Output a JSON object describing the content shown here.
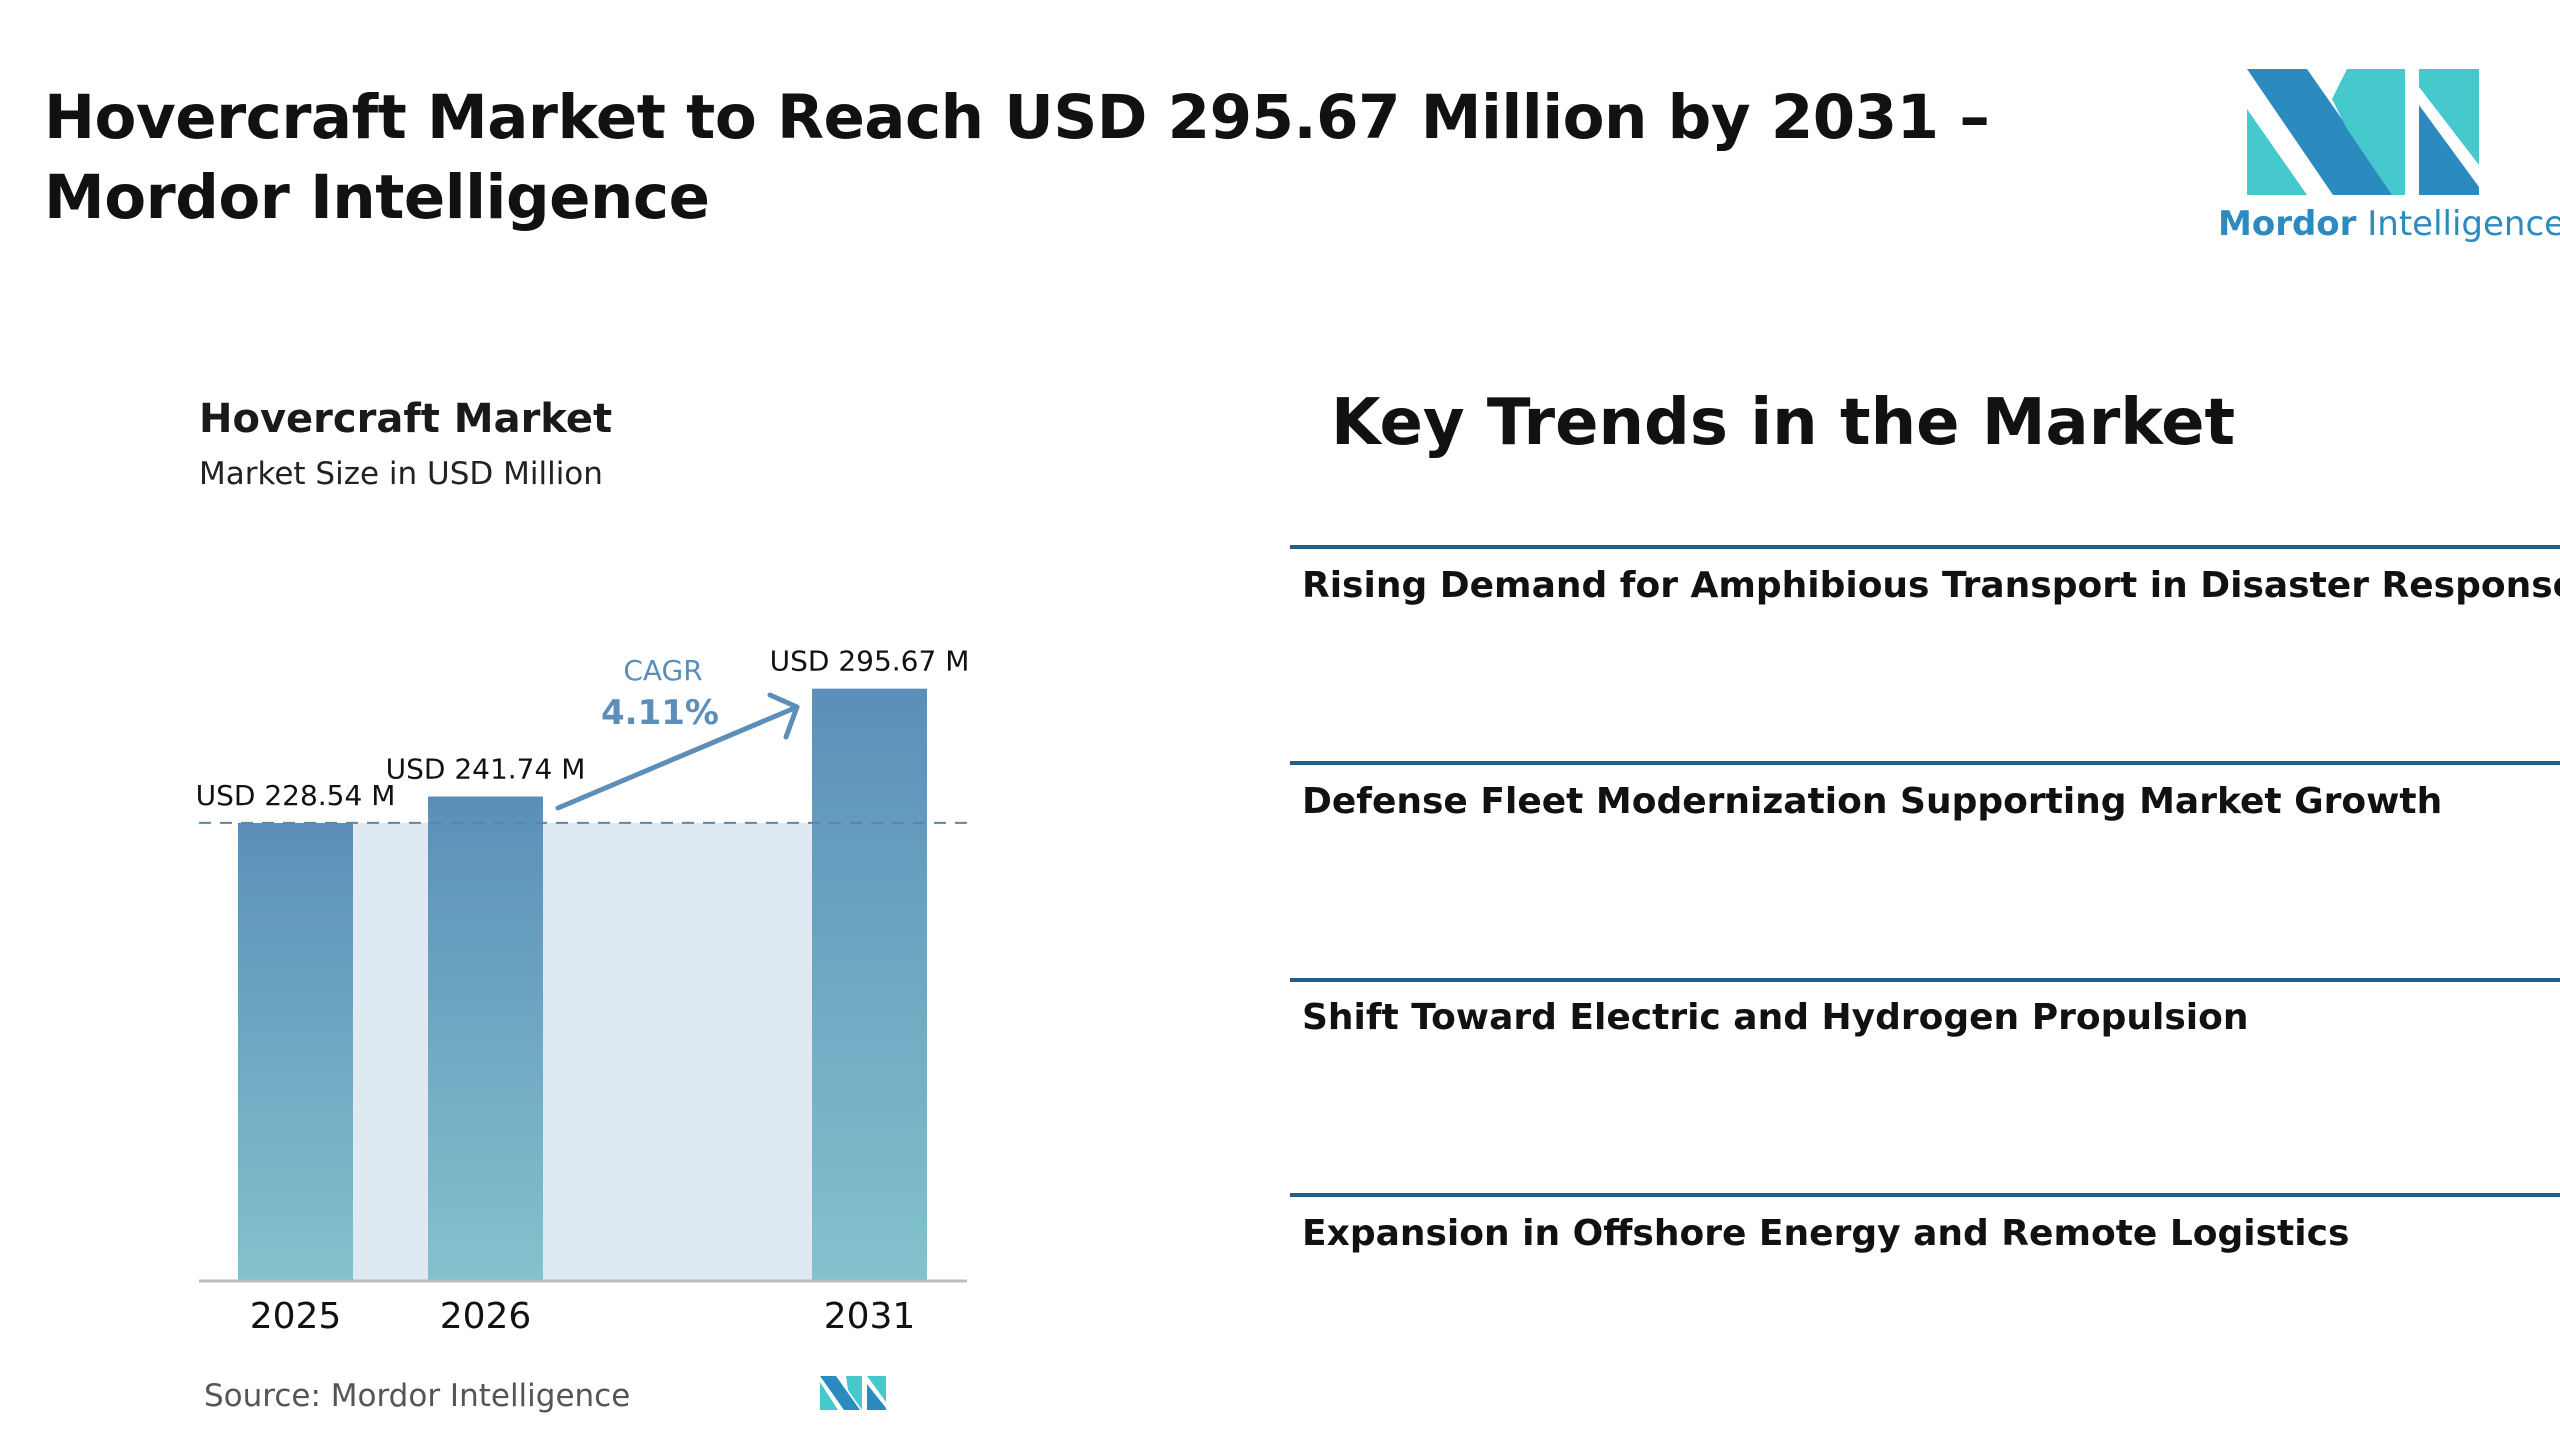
{
  "header": {
    "title": "Hovercraft Market to Reach USD 295.67 Million by 2031 – Mordor Intelligence",
    "logo_text_bold": "Mordor",
    "logo_text_light": "Intelligence"
  },
  "colors": {
    "logo_dark": "#2b8bbf",
    "logo_light": "#45c9cc",
    "bar_top": "#5b8fba",
    "bar_bottom": "#82c2cc",
    "band": "#dfe9f2",
    "rule": "#1f5f8b"
  },
  "chart_data": {
    "type": "bar",
    "title": "Hovercraft Market",
    "subtitle": "Market Size in USD Million",
    "categories": [
      "2025",
      "2026",
      "2031"
    ],
    "values": [
      228.54,
      241.74,
      295.67
    ],
    "data_labels": [
      "USD 228.54 M",
      "USD 241.74 M",
      "USD 295.67 M"
    ],
    "annotation": {
      "label": "CAGR",
      "value": "4.11%"
    },
    "source": "Source:  Mordor Intelligence",
    "grid": false
  },
  "trends": {
    "title": "Key Trends in the Market",
    "items": [
      "Rising Demand for Amphibious Transport in Disaster Response",
      "Defense Fleet Modernization Supporting Market Growth",
      "Shift Toward Electric and Hydrogen Propulsion",
      "Expansion in Offshore Energy and Remote Logistics"
    ]
  }
}
